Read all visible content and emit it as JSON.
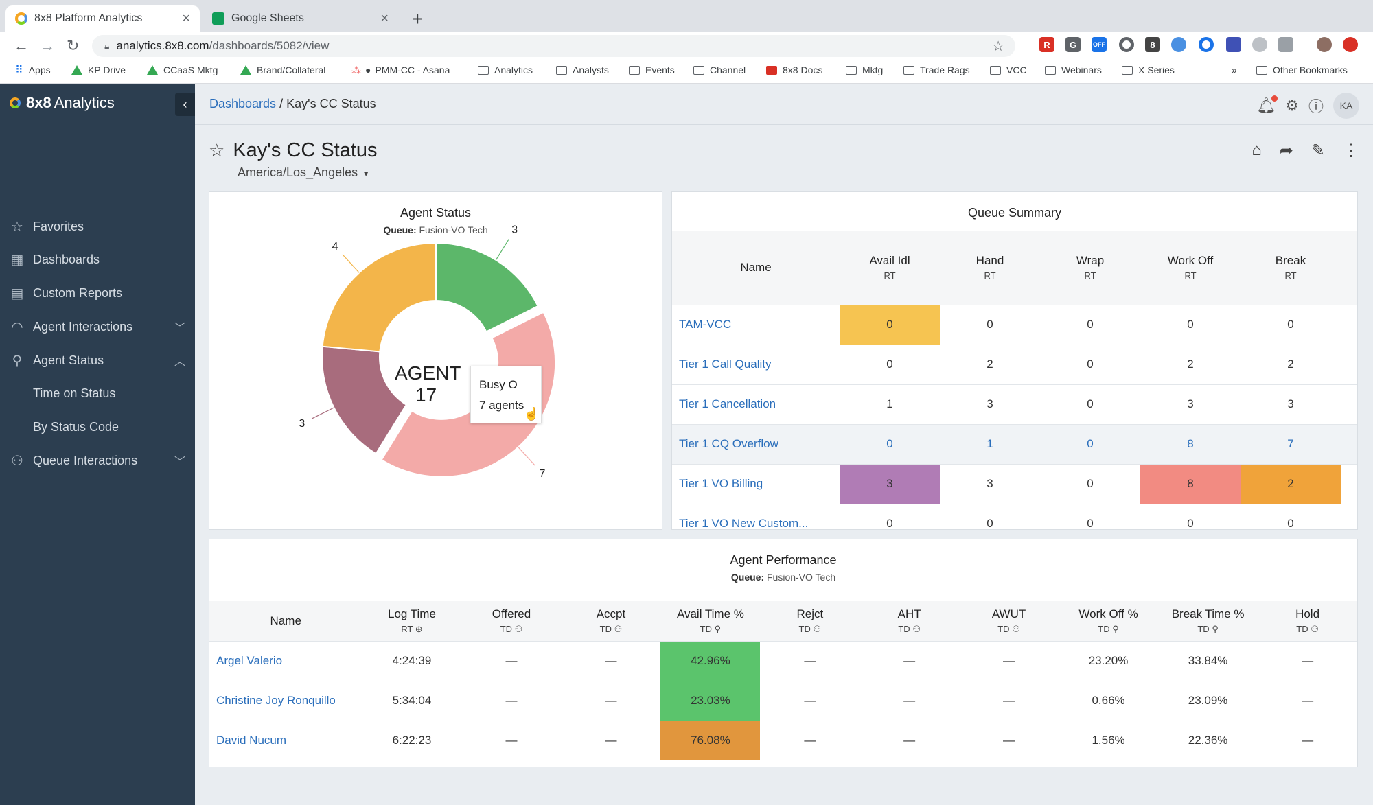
{
  "browser": {
    "tabs": [
      {
        "title": "8x8 Platform Analytics",
        "active": true
      },
      {
        "title": "Google Sheets",
        "active": false
      }
    ],
    "url_host": "analytics.8x8.com",
    "url_path": "/dashboards/5082/view",
    "bookmarks": [
      "Apps",
      "KP Drive",
      "CCaaS Mktg",
      "Brand/Collateral",
      "PMM-CC - Asana",
      "Analytics",
      "Analysts",
      "Events",
      "Channel",
      "8x8 Docs",
      "Mktg",
      "Trade Rags",
      "VCC",
      "Webinars",
      "X Series"
    ],
    "bookmarks_more": "»",
    "other_bookmarks": "Other Bookmarks"
  },
  "sidebar": {
    "brand_bold": "8x8",
    "brand_text": "Analytics",
    "items": [
      {
        "label": "Favorites",
        "icon": "star-icon"
      },
      {
        "label": "Dashboards",
        "icon": "grid-icon"
      },
      {
        "label": "Custom Reports",
        "icon": "document-icon"
      },
      {
        "label": "Agent Interactions",
        "icon": "headset-icon"
      },
      {
        "label": "Agent Status",
        "icon": "person-icon"
      },
      {
        "label": "Time on Status",
        "icon": ""
      },
      {
        "label": "By Status Code",
        "icon": ""
      },
      {
        "label": "Queue Interactions",
        "icon": "group-icon"
      }
    ]
  },
  "header": {
    "breadcrumb_link": "Dashboards",
    "breadcrumb_sep": "/",
    "breadcrumb_current": "Kay's CC Status",
    "avatar": "KA"
  },
  "dashboard": {
    "title": "Kay's CC Status",
    "timezone": "America/Los_Angeles",
    "timezone_caret": "▾"
  },
  "agent_status": {
    "title": "Agent Status",
    "queue_label": "Queue:",
    "queue_value": "Fusion-VO Tech",
    "center_label": "AGENT",
    "center_value": "17",
    "tooltip_line1": "Busy O",
    "tooltip_line2": "7 agents",
    "colors": [
      "#5cb76a",
      "#f3aaa8",
      "#a86c7d",
      "#f3b54a"
    ]
  },
  "chart_data": {
    "type": "pie",
    "variant": "donut",
    "title": "Agent Status",
    "center_label": "AGENT",
    "center_value": 17,
    "slices": [
      {
        "value": 3,
        "color": "#5cb76a"
      },
      {
        "value": 7,
        "color": "#f3aaa8"
      },
      {
        "value": 3,
        "color": "#a86c7d"
      },
      {
        "value": 4,
        "color": "#f3b54a"
      }
    ]
  },
  "queue_summary": {
    "title": "Queue Summary",
    "columns": [
      {
        "label": "Name",
        "sub": ""
      },
      {
        "label": "Avail Idl",
        "sub": "RT"
      },
      {
        "label": "Hand",
        "sub": "RT"
      },
      {
        "label": "Wrap",
        "sub": "RT"
      },
      {
        "label": "Work Off",
        "sub": "RT"
      },
      {
        "label": "Break",
        "sub": "RT"
      }
    ],
    "rows": [
      {
        "name": "TAM-VCC",
        "values": [
          "0",
          "0",
          "0",
          "0",
          "0"
        ]
      },
      {
        "name": "Tier 1 Call Quality",
        "values": [
          "0",
          "2",
          "0",
          "2",
          "2"
        ]
      },
      {
        "name": "Tier 1 Cancellation",
        "values": [
          "1",
          "3",
          "0",
          "3",
          "3"
        ]
      },
      {
        "name": "Tier 1 CQ Overflow",
        "values": [
          "0",
          "1",
          "0",
          "8",
          "7"
        ]
      },
      {
        "name": "Tier 1 VO Billing",
        "values": [
          "3",
          "3",
          "0",
          "8",
          "2"
        ]
      },
      {
        "name": "Tier 1 VO New Custom...",
        "values": [
          "0",
          "0",
          "0",
          "0",
          "0"
        ]
      }
    ]
  },
  "agent_performance": {
    "title": "Agent Performance",
    "queue_label": "Queue:",
    "queue_value": "Fusion-VO Tech",
    "columns": [
      {
        "label": "Name",
        "sub": ""
      },
      {
        "label": "Log Time",
        "sub": "RT"
      },
      {
        "label": "Offered",
        "sub": "TD"
      },
      {
        "label": "Accpt",
        "sub": "TD"
      },
      {
        "label": "Avail Time %",
        "sub": "TD"
      },
      {
        "label": "Rejct",
        "sub": "TD"
      },
      {
        "label": "AHT",
        "sub": "TD"
      },
      {
        "label": "AWUT",
        "sub": "TD"
      },
      {
        "label": "Work Off %",
        "sub": "TD"
      },
      {
        "label": "Break Time %",
        "sub": "TD"
      },
      {
        "label": "Hold",
        "sub": "TD"
      }
    ],
    "rows": [
      {
        "name": "Argel Valerio",
        "values": [
          "4:24:39",
          "—",
          "—",
          "42.96%",
          "—",
          "—",
          "—",
          "23.20%",
          "33.84%",
          "—"
        ]
      },
      {
        "name": "Christine Joy Ronquillo",
        "values": [
          "5:34:04",
          "—",
          "—",
          "23.03%",
          "—",
          "—",
          "—",
          "0.66%",
          "23.09%",
          "—"
        ]
      },
      {
        "name": "David Nucum",
        "values": [
          "6:22:23",
          "—",
          "—",
          "76.08%",
          "—",
          "—",
          "—",
          "1.56%",
          "22.36%",
          "—"
        ]
      }
    ]
  }
}
